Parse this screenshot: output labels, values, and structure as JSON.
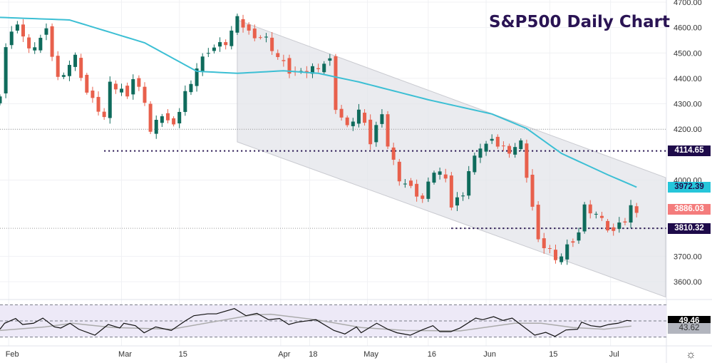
{
  "chart_data": {
    "type": "candlestick",
    "title": "S&P500 Daily Chart",
    "ylim": [
      3550,
      4700
    ],
    "y_ticks": [
      "4700.00",
      "4600.00",
      "4500.00",
      "4400.00",
      "4300.00",
      "4200.00",
      "4000.00",
      "3700.00",
      "3600.00"
    ],
    "y_tick_values": [
      4700,
      4600,
      4500,
      4400,
      4300,
      4200,
      4000,
      3700,
      3600
    ],
    "x_ticks": [
      {
        "label": "Feb",
        "day": 1.5
      },
      {
        "label": "Mar",
        "day": 21
      },
      {
        "label": "15",
        "day": 31
      },
      {
        "label": "Apr",
        "day": 48.5
      },
      {
        "label": "18",
        "day": 53.5
      },
      {
        "label": "May",
        "day": 63.5
      },
      {
        "label": "16",
        "day": 74
      },
      {
        "label": "Jun",
        "day": 84
      },
      {
        "label": "15",
        "day": 95
      },
      {
        "label": "Jul",
        "day": 105.5
      }
    ],
    "price_keypoints": [
      [
        0,
        4344
      ],
      [
        1,
        4526
      ],
      [
        3,
        4624
      ],
      [
        5,
        4506
      ],
      [
        8,
        4582
      ],
      [
        10,
        4400
      ],
      [
        13,
        4484
      ],
      [
        15,
        4344
      ],
      [
        18,
        4245
      ],
      [
        19,
        4372
      ],
      [
        22,
        4344
      ],
      [
        23,
        4400
      ],
      [
        25,
        4316
      ],
      [
        26,
        4190
      ],
      [
        28,
        4260
      ],
      [
        30,
        4204
      ],
      [
        32,
        4344
      ],
      [
        34,
        4442
      ],
      [
        36,
        4512
      ],
      [
        39,
        4540
      ],
      [
        41,
        4630
      ],
      [
        43,
        4582
      ],
      [
        46,
        4555
      ],
      [
        48,
        4484
      ],
      [
        50,
        4428
      ],
      [
        52,
        4414
      ],
      [
        54,
        4442
      ],
      [
        57,
        4470
      ],
      [
        58,
        4288
      ],
      [
        60,
        4204
      ],
      [
        62,
        4274
      ],
      [
        64,
        4147
      ],
      [
        66,
        4274
      ],
      [
        67,
        4135
      ],
      [
        69,
        4007
      ],
      [
        71,
        3965
      ],
      [
        73,
        3923
      ],
      [
        75,
        4035
      ],
      [
        77,
        4021
      ],
      [
        78,
        3895
      ],
      [
        80,
        3951
      ],
      [
        81,
        4035
      ],
      [
        83,
        4133
      ],
      [
        85,
        4147
      ],
      [
        88,
        4119
      ],
      [
        90,
        4147
      ],
      [
        91,
        4021
      ],
      [
        92,
        3895
      ],
      [
        93,
        3755
      ],
      [
        95,
        3727
      ],
      [
        96,
        3670
      ],
      [
        98,
        3741
      ],
      [
        100,
        3797
      ],
      [
        101,
        3895
      ],
      [
        103,
        3867
      ],
      [
        105,
        3811
      ],
      [
        106,
        3797
      ],
      [
        108,
        3839
      ],
      [
        109,
        3895
      ],
      [
        110,
        3886
      ]
    ],
    "moving_average": [
      [
        0,
        4640
      ],
      [
        12,
        4630
      ],
      [
        25,
        4540
      ],
      [
        34,
        4428
      ],
      [
        41,
        4420
      ],
      [
        49,
        4430
      ],
      [
        55,
        4420
      ],
      [
        62,
        4386
      ],
      [
        74,
        4316
      ],
      [
        85,
        4260
      ],
      [
        91,
        4203
      ],
      [
        97,
        4105
      ],
      [
        105,
        4021
      ],
      [
        110,
        3972
      ]
    ],
    "channel": {
      "upper": [
        [
          41,
          4630
        ],
        [
          115,
          4010
        ]
      ],
      "lower": [
        [
          41,
          4150
        ],
        [
          115,
          3540
        ]
      ]
    },
    "levels": [
      {
        "label": "4114.65",
        "value": 4114.65,
        "from_day": 18,
        "color": "#1e0b4a"
      },
      {
        "label": "3810.32",
        "value": 3810.32,
        "from_day": 78,
        "color": "#1e0b4a"
      }
    ],
    "price_tags": [
      {
        "label": "3972.39",
        "value": 3972.39,
        "color": "#26c6da",
        "text": "#1e0b4a"
      },
      {
        "label": "3886.03",
        "value": 3886.03,
        "color": "#f47c7c",
        "text": "#ffffff"
      }
    ],
    "colors": {
      "up": "#0f6b5c",
      "down": "#e8604c",
      "ma": "#3cbfd4",
      "channel": "#e3e4e9"
    },
    "rsi": {
      "bands": [
        70,
        50,
        30
      ],
      "value_label": "49.46",
      "ma_label": "43.62",
      "series": [
        [
          0,
          39.7
        ],
        [
          0.8,
          47.1
        ],
        [
          2.7,
          53
        ],
        [
          3.9,
          45.6
        ],
        [
          5.8,
          47.1
        ],
        [
          7.4,
          53.5
        ],
        [
          9.4,
          42.6
        ],
        [
          10.5,
          41.2
        ],
        [
          12.1,
          47.1
        ],
        [
          13.6,
          39.7
        ],
        [
          16.4,
          32.3
        ],
        [
          18.7,
          45.6
        ],
        [
          20.7,
          41.2
        ],
        [
          21.4,
          47.1
        ],
        [
          23.4,
          44.1
        ],
        [
          24.9,
          35.3
        ],
        [
          26.9,
          42.6
        ],
        [
          29.6,
          38.2
        ],
        [
          32,
          50
        ],
        [
          33.5,
          56.5
        ],
        [
          35.9,
          58.8
        ],
        [
          37.4,
          58.8
        ],
        [
          40.5,
          65.3
        ],
        [
          42.5,
          56.5
        ],
        [
          44.4,
          59.4
        ],
        [
          46.4,
          51.5
        ],
        [
          48.3,
          53
        ],
        [
          49.9,
          45.6
        ],
        [
          51.4,
          48.5
        ],
        [
          54.6,
          51.5
        ],
        [
          57.7,
          38.2
        ],
        [
          59.6,
          33.8
        ],
        [
          61.6,
          42.6
        ],
        [
          62.4,
          35.3
        ],
        [
          65.1,
          47.1
        ],
        [
          67,
          39.7
        ],
        [
          68.6,
          35.3
        ],
        [
          70.9,
          32.3
        ],
        [
          72.9,
          38.8
        ],
        [
          74.8,
          44.1
        ],
        [
          76,
          36.7
        ],
        [
          77.9,
          36.7
        ],
        [
          79.5,
          41.2
        ],
        [
          82.2,
          53.5
        ],
        [
          83.4,
          51.5
        ],
        [
          85.3,
          55.3
        ],
        [
          86.9,
          50.6
        ],
        [
          88.5,
          53.5
        ],
        [
          92.4,
          32.3
        ],
        [
          94.3,
          35.8
        ],
        [
          95.9,
          30.8
        ],
        [
          97.8,
          38.8
        ],
        [
          99.8,
          39.7
        ],
        [
          100.5,
          48.5
        ],
        [
          102.1,
          44.1
        ],
        [
          103.7,
          42.6
        ],
        [
          105.2,
          45.6
        ],
        [
          106.8,
          47.1
        ],
        [
          108.3,
          50.6
        ],
        [
          109.1,
          50
        ]
      ],
      "ma_series": [
        [
          0,
          38.2
        ],
        [
          7.8,
          42.6
        ],
        [
          12.5,
          47.1
        ],
        [
          19.5,
          41.8
        ],
        [
          29.6,
          39.7
        ],
        [
          36.6,
          48.5
        ],
        [
          43.6,
          57.4
        ],
        [
          46.8,
          58.3
        ],
        [
          54.6,
          51.5
        ],
        [
          62.4,
          41.8
        ],
        [
          70.1,
          38.2
        ],
        [
          79.5,
          37.6
        ],
        [
          88.9,
          47.1
        ],
        [
          93.5,
          47.1
        ],
        [
          99,
          41.8
        ],
        [
          104.4,
          39.7
        ],
        [
          109.1,
          43.6
        ]
      ]
    }
  }
}
